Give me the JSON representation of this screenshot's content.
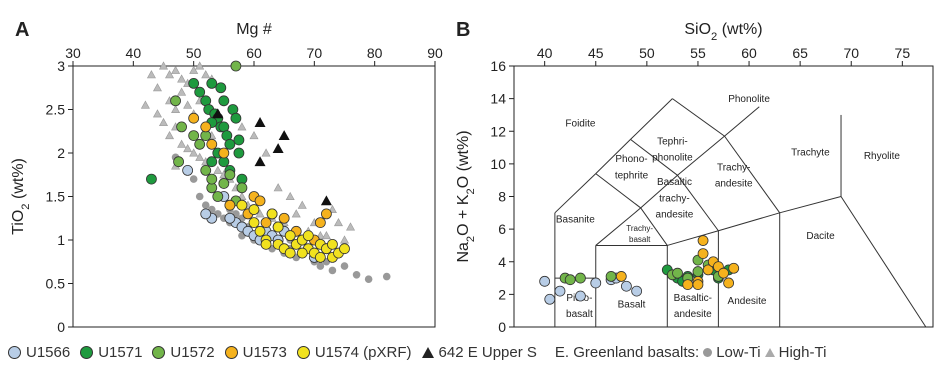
{
  "chart_data": [
    {
      "panel_letter": "A",
      "type": "scatter",
      "xlabel": "Mg #",
      "ylabel": "TiO2 (wt%)",
      "xlim": [
        30,
        90
      ],
      "ylim": [
        0,
        3
      ],
      "xticks": [
        "30",
        "40",
        "50",
        "60",
        "70",
        "80",
        "90"
      ],
      "yticks": [
        "0",
        "0.5",
        "1",
        "1.5",
        "2",
        "2.5",
        "3"
      ],
      "series": [
        {
          "name": "U1566",
          "color": "#b8cde6",
          "marker": "circle",
          "points": [
            [
              49,
              1.8
            ],
            [
              53,
              1.25
            ],
            [
              55,
              1.5
            ],
            [
              57,
              1.2
            ],
            [
              58,
              1.15
            ],
            [
              59,
              1.1
            ],
            [
              60,
              1.05
            ],
            [
              61,
              1.0
            ],
            [
              62,
              1.1
            ],
            [
              63,
              1.05
            ],
            [
              64,
              1.0
            ],
            [
              65,
              1.1
            ],
            [
              66,
              1.05
            ],
            [
              52,
              1.3
            ],
            [
              56,
              1.25
            ],
            [
              70,
              0.8
            ]
          ]
        },
        {
          "name": "U1571",
          "color": "#1e9a3e",
          "marker": "circle",
          "points": [
            [
              43,
              1.7
            ],
            [
              50,
              2.8
            ],
            [
              51,
              2.7
            ],
            [
              52,
              2.6
            ],
            [
              52.5,
              2.5
            ],
            [
              53,
              2.8
            ],
            [
              53.5,
              2.45
            ],
            [
              54,
              2.4
            ],
            [
              54.5,
              2.3
            ],
            [
              55,
              2.3
            ],
            [
              55.5,
              2.2
            ],
            [
              56,
              2.1
            ],
            [
              56.5,
              2.5
            ],
            [
              57,
              2.4
            ],
            [
              57.5,
              2.15
            ],
            [
              54,
              2.0
            ],
            [
              55,
              1.9
            ],
            [
              53,
              1.9
            ],
            [
              56,
              1.8
            ],
            [
              55,
              2.6
            ],
            [
              58,
              1.7
            ],
            [
              54.5,
              2.75
            ],
            [
              53,
              2.35
            ],
            [
              57.5,
              2.0
            ]
          ]
        },
        {
          "name": "U1572",
          "color": "#72b54a",
          "marker": "circle",
          "points": [
            [
              47,
              2.6
            ],
            [
              48,
              2.3
            ],
            [
              47.5,
              1.9
            ],
            [
              50,
              2.2
            ],
            [
              51,
              2.1
            ],
            [
              52,
              1.8
            ],
            [
              53,
              1.6
            ],
            [
              54,
              1.5
            ],
            [
              55,
              1.65
            ],
            [
              56,
              1.75
            ],
            [
              57,
              1.45
            ],
            [
              57,
              3.0
            ],
            [
              52,
              2.2
            ],
            [
              58,
              1.6
            ],
            [
              53,
              1.7
            ]
          ]
        },
        {
          "name": "U1573",
          "color": "#f5b21d",
          "marker": "circle",
          "points": [
            [
              50,
              2.4
            ],
            [
              52,
              2.3
            ],
            [
              53,
              2.1
            ],
            [
              55,
              2.0
            ],
            [
              56,
              1.4
            ],
            [
              59,
              1.3
            ],
            [
              60,
              1.5
            ],
            [
              61,
              1.45
            ],
            [
              62,
              1.2
            ],
            [
              63,
              1.3
            ],
            [
              64,
              1.15
            ],
            [
              65,
              1.25
            ],
            [
              67,
              1.1
            ],
            [
              68,
              1.0
            ],
            [
              71,
              1.2
            ],
            [
              72,
              1.3
            ],
            [
              70,
              1.0
            ],
            [
              72,
              0.9
            ]
          ]
        },
        {
          "name": "U1574 (pXRF)",
          "color": "#f1e21f",
          "marker": "circle",
          "points": [
            [
              58,
              1.4
            ],
            [
              60,
              1.2
            ],
            [
              61,
              1.1
            ],
            [
              62,
              1.0
            ],
            [
              63,
              1.3
            ],
            [
              64,
              0.95
            ],
            [
              65,
              0.9
            ],
            [
              66,
              1.05
            ],
            [
              67,
              0.95
            ],
            [
              68,
              1.0
            ],
            [
              69,
              0.9
            ],
            [
              70,
              0.85
            ],
            [
              71,
              0.95
            ],
            [
              72,
              0.9
            ],
            [
              73,
              0.8
            ],
            [
              74,
              0.85
            ],
            [
              75,
              0.9
            ],
            [
              62,
              0.95
            ],
            [
              64,
              1.15
            ],
            [
              66,
              0.85
            ],
            [
              68,
              0.85
            ],
            [
              69,
              1.05
            ],
            [
              60,
              1.35
            ],
            [
              73,
              0.95
            ],
            [
              71,
              0.8
            ]
          ]
        },
        {
          "name": "642 E Upper S",
          "color": "#111111",
          "marker": "triangle",
          "points": [
            [
              54,
              2.45
            ],
            [
              61,
              2.35
            ],
            [
              65,
              2.2
            ],
            [
              64,
              2.05
            ],
            [
              72,
              1.45
            ],
            [
              61,
              1.9
            ]
          ]
        }
      ],
      "background": [
        {
          "name": "Low-Ti",
          "color": "#999999",
          "marker": "circle",
          "points": [
            [
              47,
              1.95
            ],
            [
              50,
              1.7
            ],
            [
              51,
              1.5
            ],
            [
              52,
              1.4
            ],
            [
              53,
              1.35
            ],
            [
              54,
              1.3
            ],
            [
              55,
              1.25
            ],
            [
              56,
              1.2
            ],
            [
              57,
              1.3
            ],
            [
              58,
              1.25
            ],
            [
              59,
              1.15
            ],
            [
              60,
              1.0
            ],
            [
              61,
              1.05
            ],
            [
              62,
              0.95
            ],
            [
              63,
              0.9
            ],
            [
              64,
              0.95
            ],
            [
              65,
              0.85
            ],
            [
              66,
              0.9
            ],
            [
              67,
              0.8
            ],
            [
              68,
              0.85
            ],
            [
              69,
              0.9
            ],
            [
              70,
              0.85
            ],
            [
              71,
              0.7
            ],
            [
              72,
              0.75
            ],
            [
              73,
              0.65
            ],
            [
              75,
              0.7
            ],
            [
              77,
              0.6
            ],
            [
              79,
              0.55
            ],
            [
              82,
              0.58
            ],
            [
              58,
              1.05
            ],
            [
              56,
              1.35
            ],
            [
              62,
              1.1
            ],
            [
              66,
              1.0
            ],
            [
              70,
              0.75
            ]
          ]
        },
        {
          "name": "High-Ti",
          "color": "#bbbbbb",
          "marker": "triangle",
          "points": [
            [
              45,
              3.0
            ],
            [
              46,
              2.9
            ],
            [
              47,
              2.95
            ],
            [
              48,
              2.85
            ],
            [
              49,
              2.8
            ],
            [
              50,
              2.95
            ],
            [
              51,
              3.0
            ],
            [
              52,
              2.9
            ],
            [
              53,
              2.85
            ],
            [
              46,
              2.6
            ],
            [
              47,
              2.5
            ],
            [
              48,
              2.7
            ],
            [
              49,
              2.55
            ],
            [
              50,
              2.45
            ],
            [
              45,
              2.35
            ],
            [
              46,
              2.2
            ],
            [
              47,
              2.3
            ],
            [
              48,
              2.1
            ],
            [
              49,
              2.05
            ],
            [
              50,
              2.0
            ],
            [
              51,
              1.95
            ],
            [
              52,
              1.9
            ],
            [
              44,
              2.45
            ],
            [
              43,
              2.9
            ],
            [
              42,
              2.55
            ],
            [
              53,
              2.2
            ],
            [
              54,
              1.8
            ],
            [
              55,
              1.75
            ],
            [
              56,
              1.7
            ],
            [
              57,
              1.6
            ],
            [
              58,
              1.5
            ],
            [
              59,
              1.4
            ],
            [
              60,
              1.35
            ],
            [
              61,
              1.3
            ],
            [
              63,
              1.25
            ],
            [
              65,
              1.2
            ],
            [
              67,
              1.3
            ],
            [
              69,
              1.1
            ],
            [
              71,
              1.05
            ],
            [
              73,
              1.35
            ],
            [
              74,
              1.2
            ],
            [
              75,
              1.0
            ],
            [
              76,
              1.15
            ],
            [
              62,
              2.0
            ],
            [
              60,
              2.2
            ],
            [
              58,
              2.3
            ],
            [
              47,
              1.85
            ],
            [
              44,
              2.75
            ],
            [
              51,
              2.6
            ],
            [
              64,
              1.6
            ],
            [
              66,
              1.5
            ],
            [
              68,
              1.4
            ],
            [
              70,
              1.2
            ],
            [
              72,
              1.05
            ]
          ]
        }
      ]
    },
    {
      "panel_letter": "B",
      "type": "scatter",
      "xlabel": "SiO2 (wt%)",
      "ylabel": "Na2O + K2O (wt%)",
      "xlim": [
        37,
        78
      ],
      "ylim": [
        0,
        16
      ],
      "xticks": [
        "40",
        "45",
        "50",
        "55",
        "60",
        "65",
        "70",
        "75"
      ],
      "yticks": [
        "0",
        "2",
        "4",
        "6",
        "8",
        "10",
        "12",
        "14",
        "16"
      ],
      "field_labels": [
        "Foidite",
        "Tephri-",
        "phonolite",
        "Phonolite",
        "Phono-",
        "tephrite",
        "Trachy-",
        "andesite",
        "Trachyte",
        "Rhyolite",
        "Basanite",
        "Basaltic",
        "trachy-",
        "andesite",
        "Trachy-",
        "basalt",
        "Dacite",
        "Picro-",
        "basalt",
        "Basalt",
        "Basaltic-",
        "andesite",
        "Andesite"
      ],
      "series": [
        {
          "name": "U1566",
          "color": "#b8cde6",
          "marker": "circle",
          "points": [
            [
              40,
              2.8
            ],
            [
              40.5,
              1.7
            ],
            [
              41.5,
              2.2
            ],
            [
              43.5,
              1.9
            ],
            [
              45,
              2.7
            ],
            [
              46.5,
              2.9
            ],
            [
              48,
              2.5
            ],
            [
              49,
              2.2
            ],
            [
              47,
              3.0
            ]
          ]
        },
        {
          "name": "U1571",
          "color": "#1e9a3e",
          "marker": "circle",
          "points": [
            [
              52,
              3.5
            ],
            [
              53,
              3.0
            ],
            [
              53.5,
              2.8
            ],
            [
              54,
              3.1
            ],
            [
              55,
              3.2
            ],
            [
              56.5,
              3.5
            ],
            [
              57,
              3.0
            ],
            [
              58,
              3.5
            ]
          ]
        },
        {
          "name": "U1572",
          "color": "#72b54a",
          "marker": "circle",
          "points": [
            [
              42,
              3.0
            ],
            [
              42.5,
              2.9
            ],
            [
              43.5,
              3.0
            ],
            [
              46.5,
              3.1
            ],
            [
              52.5,
              3.2
            ],
            [
              53,
              3.3
            ],
            [
              54,
              3.0
            ],
            [
              55,
              3.4
            ],
            [
              56,
              3.8
            ],
            [
              57,
              3.1
            ],
            [
              55,
              4.1
            ]
          ]
        },
        {
          "name": "U1573",
          "color": "#f5b21d",
          "marker": "circle",
          "points": [
            [
              47.5,
              3.1
            ],
            [
              54,
              2.6
            ],
            [
              55,
              2.8
            ],
            [
              55.5,
              5.3
            ],
            [
              55.5,
              4.5
            ],
            [
              56,
              3.5
            ],
            [
              56.5,
              4.0
            ],
            [
              57,
              3.7
            ],
            [
              57.5,
              3.3
            ],
            [
              58,
              2.7
            ],
            [
              55,
              2.6
            ],
            [
              58.5,
              3.6
            ]
          ]
        }
      ]
    }
  ],
  "legend": {
    "items": [
      "U1566",
      "U1571",
      "U1572",
      "U1573",
      "U1574 (pXRF)",
      "642 E Upper S"
    ],
    "swatch_colors": [
      "#b8cde6",
      "#1e9a3e",
      "#72b54a",
      "#f5b21d",
      "#f1e21f",
      "#111111"
    ],
    "groundmass_label": "E. Greenland basalts:",
    "low_label": "Low-Ti",
    "high_label": "High-Ti"
  }
}
